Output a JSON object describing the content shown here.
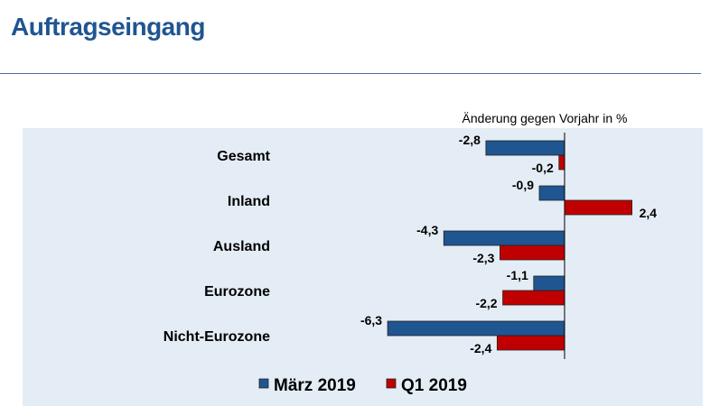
{
  "header": {
    "title": "Auftragseingang"
  },
  "chart_data": {
    "type": "bar",
    "orientation": "horizontal",
    "title": "Änderung gegen Vorjahr in %",
    "categories": [
      "Gesamt",
      "Inland",
      "Ausland",
      "Eurozone",
      "Nicht-Eurozone"
    ],
    "series": [
      {
        "name": "März 2019",
        "color": "#1f5591",
        "values": [
          -2.8,
          -0.9,
          -4.3,
          -1.1,
          -6.3
        ],
        "labels": [
          "-2,8",
          "-0,9",
          "-4,3",
          "-1,1",
          "-6,3"
        ]
      },
      {
        "name": "Q1 2019",
        "color": "#c00000",
        "values": [
          -0.2,
          2.4,
          -2.3,
          -2.2,
          -2.4
        ],
        "labels": [
          "-0,2",
          "2,4",
          "-2,3",
          "-2,2",
          "-2,4"
        ]
      }
    ],
    "legend": "bottom",
    "grid": false,
    "background": "#e4edf5"
  }
}
